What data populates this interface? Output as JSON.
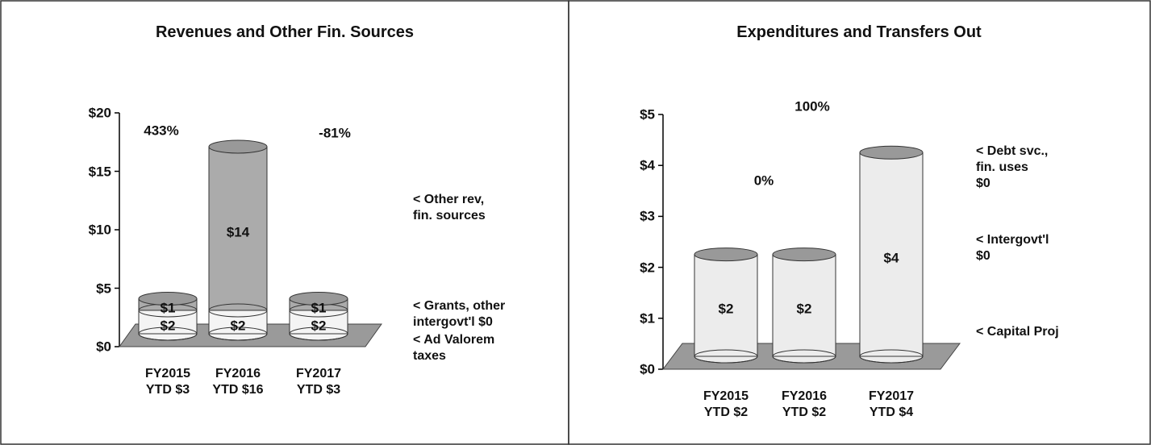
{
  "chart_data": [
    {
      "type": "bar",
      "stacked": true,
      "title": "Revenues and Other Fin. Sources",
      "categories": [
        "FY2015\nYTD  $3",
        "FY2016\nYTD  $16",
        "FY2017\nYTD  $3"
      ],
      "series": [
        {
          "name": "< Ad Valorem\ntaxes",
          "color": "#f4f4f4",
          "values": [
            2,
            2,
            2
          ],
          "value_labels": [
            "$2",
            "$2",
            "$2"
          ]
        },
        {
          "name": "< Grants, other\nintergovt'l $0",
          "color": "#dedede",
          "values": [
            0,
            0,
            0
          ]
        },
        {
          "name": "< Other rev,\nfin. sources",
          "color": "#ababab",
          "values": [
            1,
            14,
            1
          ],
          "value_labels": [
            "$1",
            "$14",
            "$1"
          ]
        }
      ],
      "ylim": [
        0,
        20
      ],
      "yticks": [
        {
          "value": 0,
          "label": "$0"
        },
        {
          "value": 5,
          "label": "$5"
        },
        {
          "value": 10,
          "label": "$10"
        },
        {
          "value": 15,
          "label": "$15"
        },
        {
          "value": 20,
          "label": "$20"
        }
      ],
      "annotations": [
        "433%",
        "-81%"
      ]
    },
    {
      "type": "bar",
      "stacked": true,
      "title": "Expenditures and Transfers Out",
      "categories": [
        "FY2015\nYTD  $2",
        "FY2016\nYTD  $2",
        "FY2017\nYTD  $4"
      ],
      "series": [
        {
          "name": "< Capital Proj",
          "color": "#ececec",
          "values": [
            2,
            2,
            4
          ],
          "value_labels": [
            "$2",
            "$2",
            "$4"
          ]
        },
        {
          "name": "< Intergovt'l\n$0",
          "color": "#d8d8d8",
          "values": [
            0,
            0,
            0
          ]
        },
        {
          "name": "< Debt svc.,\nfin. uses\n$0",
          "color": "#b0b0b0",
          "values": [
            0,
            0,
            0
          ]
        }
      ],
      "ylim": [
        0,
        5
      ],
      "yticks": [
        {
          "value": 0,
          "label": "$0"
        },
        {
          "value": 1,
          "label": "$1"
        },
        {
          "value": 2,
          "label": "$2"
        },
        {
          "value": 3,
          "label": "$3"
        },
        {
          "value": 4,
          "label": "$4"
        },
        {
          "value": 5,
          "label": "$5"
        }
      ],
      "annotations": [
        "0%",
        "100%"
      ]
    }
  ]
}
